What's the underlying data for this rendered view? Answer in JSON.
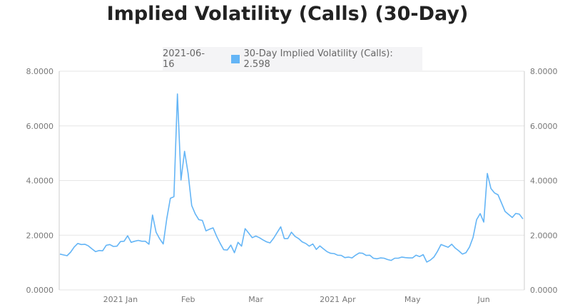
{
  "chart_data": {
    "type": "line",
    "title": "Implied Volatility (Calls) (30-Day)",
    "xlabel": "",
    "ylabel": "",
    "ylim": [
      0,
      8
    ],
    "yticks": [
      "0.0000",
      "2.0000",
      "4.0000",
      "6.0000",
      "8.0000"
    ],
    "ytick_values": [
      0,
      2,
      4,
      6,
      8
    ],
    "xtick_labels": [
      {
        "date": "2021-01-04",
        "label": "2021 Jan"
      },
      {
        "date": "2021-02-01",
        "label": "Feb"
      },
      {
        "date": "2021-03-01",
        "label": "Mar"
      },
      {
        "date": "2021-04-01",
        "label": "2021 Apr"
      },
      {
        "date": "2021-05-03",
        "label": "May"
      },
      {
        "date": "2021-06-01",
        "label": "Jun"
      }
    ],
    "grid": true,
    "series": [
      {
        "name": "30-Day Implied Volatility (Calls)",
        "color": "#64b5f6",
        "x": [
          "2020-12-08",
          "2020-12-09",
          "2020-12-10",
          "2020-12-11",
          "2020-12-14",
          "2020-12-15",
          "2020-12-16",
          "2020-12-17",
          "2020-12-18",
          "2020-12-21",
          "2020-12-22",
          "2020-12-23",
          "2020-12-24",
          "2020-12-28",
          "2020-12-29",
          "2020-12-30",
          "2020-12-31",
          "2021-01-04",
          "2021-01-05",
          "2021-01-06",
          "2021-01-07",
          "2021-01-08",
          "2021-01-11",
          "2021-01-12",
          "2021-01-13",
          "2021-01-14",
          "2021-01-15",
          "2021-01-19",
          "2021-01-20",
          "2021-01-21",
          "2021-01-22",
          "2021-01-25",
          "2021-01-26",
          "2021-01-27",
          "2021-01-28",
          "2021-01-29",
          "2021-02-01",
          "2021-02-02",
          "2021-02-03",
          "2021-02-04",
          "2021-02-05",
          "2021-02-08",
          "2021-02-09",
          "2021-02-10",
          "2021-02-11",
          "2021-02-12",
          "2021-02-16",
          "2021-02-17",
          "2021-02-18",
          "2021-02-19",
          "2021-02-22",
          "2021-02-23",
          "2021-02-24",
          "2021-02-25",
          "2021-02-26",
          "2021-03-01",
          "2021-03-02",
          "2021-03-03",
          "2021-03-04",
          "2021-03-05",
          "2021-03-08",
          "2021-03-09",
          "2021-03-10",
          "2021-03-11",
          "2021-03-12",
          "2021-03-15",
          "2021-03-16",
          "2021-03-17",
          "2021-03-18",
          "2021-03-19",
          "2021-03-22",
          "2021-03-23",
          "2021-03-24",
          "2021-03-25",
          "2021-03-26",
          "2021-03-29",
          "2021-03-30",
          "2021-03-31",
          "2021-04-01",
          "2021-04-05",
          "2021-04-06",
          "2021-04-07",
          "2021-04-08",
          "2021-04-09",
          "2021-04-12",
          "2021-04-13",
          "2021-04-14",
          "2021-04-15",
          "2021-04-16",
          "2021-04-19",
          "2021-04-20",
          "2021-04-21",
          "2021-04-22",
          "2021-04-23",
          "2021-04-26",
          "2021-04-27",
          "2021-04-28",
          "2021-04-29",
          "2021-04-30",
          "2021-05-03",
          "2021-05-04",
          "2021-05-05",
          "2021-05-06",
          "2021-05-07",
          "2021-05-10",
          "2021-05-11",
          "2021-05-12",
          "2021-05-13",
          "2021-05-14",
          "2021-05-17",
          "2021-05-18",
          "2021-05-19",
          "2021-05-20",
          "2021-05-21",
          "2021-05-24",
          "2021-05-25",
          "2021-05-26",
          "2021-05-27",
          "2021-05-28",
          "2021-06-01",
          "2021-06-02",
          "2021-06-03",
          "2021-06-04",
          "2021-06-07",
          "2021-06-08",
          "2021-06-09",
          "2021-06-10",
          "2021-06-11",
          "2021-06-14",
          "2021-06-15",
          "2021-06-16"
        ],
        "values": [
          1.31,
          1.28,
          1.25,
          1.38,
          1.57,
          1.7,
          1.66,
          1.67,
          1.61,
          1.5,
          1.4,
          1.44,
          1.43,
          1.63,
          1.66,
          1.59,
          1.6,
          1.77,
          1.78,
          1.98,
          1.74,
          1.78,
          1.81,
          1.78,
          1.78,
          1.67,
          2.74,
          2.11,
          1.87,
          1.68,
          2.61,
          3.35,
          3.41,
          7.17,
          4.02,
          5.07,
          4.26,
          3.09,
          2.78,
          2.57,
          2.54,
          2.16,
          2.22,
          2.27,
          1.96,
          1.7,
          1.47,
          1.46,
          1.64,
          1.36,
          1.74,
          1.6,
          2.24,
          2.08,
          1.91,
          1.97,
          1.91,
          1.83,
          1.76,
          1.72,
          1.89,
          2.1,
          2.31,
          1.88,
          1.88,
          2.11,
          1.96,
          1.88,
          1.76,
          1.7,
          1.6,
          1.68,
          1.48,
          1.61,
          1.5,
          1.4,
          1.34,
          1.33,
          1.27,
          1.26,
          1.18,
          1.2,
          1.17,
          1.27,
          1.35,
          1.34,
          1.26,
          1.27,
          1.16,
          1.14,
          1.17,
          1.16,
          1.11,
          1.08,
          1.16,
          1.16,
          1.2,
          1.18,
          1.17,
          1.17,
          1.27,
          1.22,
          1.29,
          1.02,
          1.09,
          1.2,
          1.41,
          1.66,
          1.61,
          1.56,
          1.67,
          1.53,
          1.43,
          1.31,
          1.36,
          1.57,
          1.92,
          2.57,
          2.79,
          2.48,
          4.26,
          3.71,
          3.55,
          3.48,
          3.18,
          2.87,
          2.76,
          2.65,
          2.8,
          2.77,
          2.598
        ]
      }
    ]
  },
  "tooltip": {
    "date": "2021-06-16",
    "label": "30-Day Implied Volatility (Calls): 2.598"
  }
}
